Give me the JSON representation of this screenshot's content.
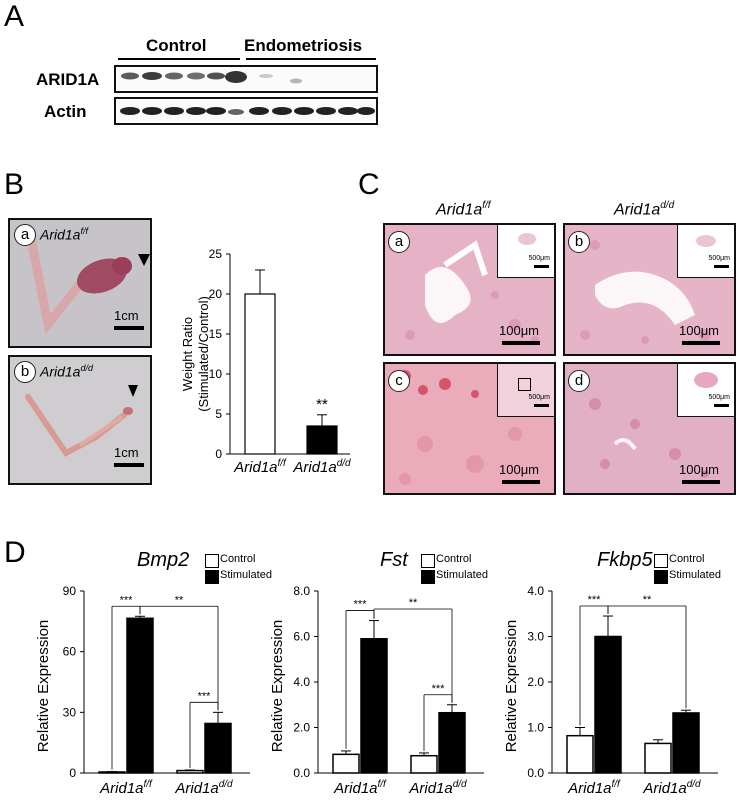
{
  "panels": {
    "a": "A",
    "b": "B",
    "c": "C",
    "d": "D"
  },
  "panel_a": {
    "group_control": "Control",
    "group_endo": "Endometriosis",
    "row1": "ARID1A",
    "row2": "Actin"
  },
  "panel_b": {
    "photo_a": {
      "circle": "a",
      "label_main": "Arid1a",
      "label_sup": "f/f",
      "scale": "1cm"
    },
    "photo_b": {
      "circle": "b",
      "label_main": "Arid1a",
      "label_sup": "d/d",
      "scale": "1cm"
    }
  },
  "panel_c": {
    "col1_main": "Arid1a",
    "col1_sup": "f/f",
    "col2_main": "Arid1a",
    "col2_sup": "d/d",
    "tiles": [
      {
        "circle": "a",
        "inset": "500μm",
        "scale": "100μm"
      },
      {
        "circle": "b",
        "inset": "500μm",
        "scale": "100μm"
      },
      {
        "circle": "c",
        "inset": "500μm",
        "scale": "100μm"
      },
      {
        "circle": "d",
        "inset": "500μm",
        "scale": "100μm"
      }
    ]
  },
  "legend": {
    "control": "Control",
    "stimulated": "Stimulated"
  },
  "chart_data": [
    {
      "type": "bar",
      "title": "",
      "xlabel": "",
      "ylabel": "Weight Ratio (Stimulated/Control)",
      "ylabel_line1": "Weight Ratio",
      "ylabel_line2": "(Stimulated/Control)",
      "ylim": [
        0,
        25
      ],
      "yticks": [
        "0",
        "5",
        "10",
        "15",
        "20",
        "25"
      ],
      "categories": [
        {
          "main": "Arid1a",
          "sup": "f/f"
        },
        {
          "main": "Arid1a",
          "sup": "d/d"
        }
      ],
      "values": [
        20.0,
        3.5
      ],
      "errors": [
        3.0,
        1.4
      ],
      "fills": [
        "#ffffff",
        "#000000"
      ],
      "annotations": [
        "",
        "**"
      ]
    },
    {
      "type": "bar",
      "title": "Bmp2",
      "ylabel": "Relative Expression",
      "ylim": [
        0,
        90
      ],
      "yticks": [
        "0",
        "30",
        "60",
        "90"
      ],
      "categories": [
        {
          "main": "Arid1a",
          "sup": "f/f"
        },
        {
          "main": "Arid1a",
          "sup": "d/d"
        }
      ],
      "series": [
        {
          "name": "Control",
          "values": [
            0.5,
            1.2
          ],
          "errors": [
            0.2,
            0.3
          ]
        },
        {
          "name": "Stimulated",
          "values": [
            76.5,
            24.5
          ],
          "errors": [
            1.0,
            5.5
          ]
        }
      ],
      "significance": [
        "***",
        "***",
        "**"
      ]
    },
    {
      "type": "bar",
      "title": "Fst",
      "ylabel": "Relative Expression",
      "ylim": [
        0,
        8
      ],
      "yticks": [
        "0.0",
        "2.0",
        "4.0",
        "6.0",
        "8.0"
      ],
      "categories": [
        {
          "main": "Arid1a",
          "sup": "f/f"
        },
        {
          "main": "Arid1a",
          "sup": "d/d"
        }
      ],
      "series": [
        {
          "name": "Control",
          "values": [
            0.82,
            0.76
          ],
          "errors": [
            0.15,
            0.12
          ]
        },
        {
          "name": "Stimulated",
          "values": [
            5.9,
            2.65
          ],
          "errors": [
            0.8,
            0.35
          ]
        }
      ],
      "significance": [
        "***",
        "***",
        "**"
      ]
    },
    {
      "type": "bar",
      "title": "Fkbp5",
      "ylabel": "Relative Expression",
      "ylim": [
        0,
        4
      ],
      "yticks": [
        "0.0",
        "1.0",
        "2.0",
        "3.0",
        "4.0"
      ],
      "categories": [
        {
          "main": "Arid1a",
          "sup": "f/f"
        },
        {
          "main": "Arid1a",
          "sup": "d/d"
        }
      ],
      "series": [
        {
          "name": "Control",
          "values": [
            0.82,
            0.65
          ],
          "errors": [
            0.18,
            0.08
          ]
        },
        {
          "name": "Stimulated",
          "values": [
            3.0,
            1.32
          ],
          "errors": [
            0.45,
            0.06
          ]
        }
      ],
      "significance": [
        "***",
        "**"
      ]
    }
  ]
}
